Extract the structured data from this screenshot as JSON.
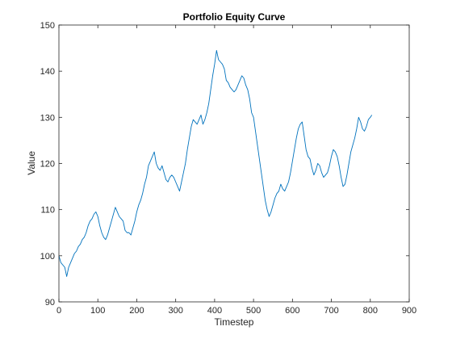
{
  "chart_data": {
    "type": "line",
    "title": "Portfolio Equity Curve",
    "xlabel": "Timestep",
    "ylabel": "Value",
    "xlim": [
      0,
      900
    ],
    "ylim": [
      90,
      150
    ],
    "xticks": [
      0,
      100,
      200,
      300,
      400,
      500,
      600,
      700,
      800,
      900
    ],
    "yticks": [
      90,
      100,
      110,
      120,
      130,
      140,
      150
    ],
    "grid": false,
    "box": true,
    "line_color": "#0072BD",
    "series": [
      {
        "x": [
          0,
          5,
          10,
          15,
          20,
          25,
          30,
          35,
          40,
          45,
          50,
          55,
          60,
          65,
          70,
          75,
          80,
          85,
          90,
          95,
          100,
          105,
          110,
          115,
          120,
          125,
          130,
          135,
          140,
          145,
          150,
          155,
          160,
          165,
          170,
          175,
          180,
          185,
          190,
          195,
          200,
          205,
          210,
          215,
          220,
          225,
          230,
          235,
          240,
          245,
          250,
          255,
          260,
          265,
          270,
          275,
          280,
          285,
          290,
          295,
          300,
          305,
          310,
          315,
          320,
          325,
          330,
          335,
          340,
          345,
          350,
          355,
          360,
          365,
          370,
          375,
          380,
          385,
          390,
          395,
          400,
          405,
          410,
          415,
          420,
          425,
          430,
          435,
          440,
          445,
          450,
          455,
          460,
          465,
          470,
          475,
          480,
          485,
          490,
          495,
          500,
          505,
          510,
          515,
          520,
          525,
          530,
          535,
          540,
          545,
          550,
          555,
          560,
          565,
          570,
          575,
          580,
          585,
          590,
          595,
          600,
          605,
          610,
          615,
          620,
          625,
          630,
          635,
          640,
          645,
          650,
          655,
          660,
          665,
          670,
          675,
          680,
          685,
          690,
          695,
          700,
          705,
          710,
          715,
          720,
          725,
          730,
          735,
          740,
          745,
          750,
          755,
          760,
          765,
          770,
          775,
          780,
          785,
          790,
          795,
          800,
          804
        ],
        "y": [
          100,
          98.5,
          98,
          97.5,
          95.5,
          97.5,
          98.5,
          99.5,
          100.5,
          101,
          102,
          102.5,
          103.5,
          104,
          105,
          106.5,
          107.5,
          108,
          109,
          109.5,
          108.5,
          106.5,
          105,
          104,
          103.5,
          104.5,
          106,
          107.5,
          109,
          110.5,
          109.5,
          108.5,
          108,
          107.5,
          105.5,
          105,
          105,
          104.5,
          106,
          107.5,
          109.5,
          111,
          112,
          113.5,
          115.5,
          117,
          119.5,
          120.5,
          121.5,
          122.5,
          120,
          119,
          118.5,
          119.5,
          118,
          116.5,
          116,
          117,
          117.5,
          117,
          116,
          115,
          114,
          116,
          118,
          120,
          123,
          125.5,
          128,
          129.5,
          129,
          128.5,
          129.5,
          130.5,
          128.5,
          129.5,
          131,
          133,
          136,
          139,
          141.5,
          144.5,
          142.5,
          142,
          141.5,
          140.5,
          138,
          137.5,
          136.5,
          136,
          135.5,
          136,
          137,
          138,
          139,
          138.5,
          137,
          136,
          134,
          131,
          130,
          127,
          124,
          121,
          118,
          115,
          112,
          110,
          108.5,
          109.5,
          111,
          112.5,
          113.5,
          114,
          115.5,
          114.5,
          114,
          115,
          116,
          118,
          120.5,
          123,
          125.5,
          127.5,
          128.5,
          129,
          126,
          123,
          121.5,
          121,
          119,
          117.5,
          118.5,
          120,
          119.5,
          118,
          117,
          117.5,
          118,
          119.5,
          121.5,
          123,
          122.5,
          121.5,
          119.5,
          117,
          115,
          115.5,
          117.5,
          120,
          122.5,
          124,
          125.5,
          127.5,
          130,
          129,
          127.5,
          127,
          128,
          129.5,
          130,
          130.5
        ]
      }
    ]
  }
}
